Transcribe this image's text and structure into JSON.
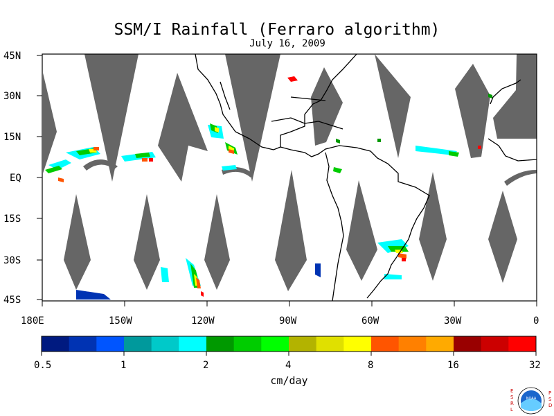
{
  "title": "SSM/I Rainfall (Ferraro algorithm)",
  "subtitle": "July 16, 2009",
  "map": {
    "lat_labels": [
      "45N",
      "30N",
      "15N",
      "EQ",
      "15S",
      "30S",
      "45S"
    ],
    "lon_labels": [
      "180E",
      "150W",
      "120W",
      "90W",
      "60W",
      "30W",
      "0"
    ],
    "land_color": "#000000",
    "missing_color": "#666666"
  },
  "colorbar": {
    "units": "cm/day",
    "tick_labels": [
      "0.5",
      "1",
      "2",
      "4",
      "8",
      "16",
      "32"
    ],
    "colors": [
      "#001a80",
      "#0033b3",
      "#0055ff",
      "#00999c",
      "#00c9c9",
      "#00ffff",
      "#009900",
      "#00cc00",
      "#00ff00",
      "#b3b300",
      "#e0e000",
      "#ffff00",
      "#ff5500",
      "#ff8000",
      "#ffaa00",
      "#990000",
      "#cc0000",
      "#ff0000"
    ]
  },
  "logo": {
    "left_text": "ESRL",
    "right_text": "PSD",
    "center_text": "NOAA"
  }
}
